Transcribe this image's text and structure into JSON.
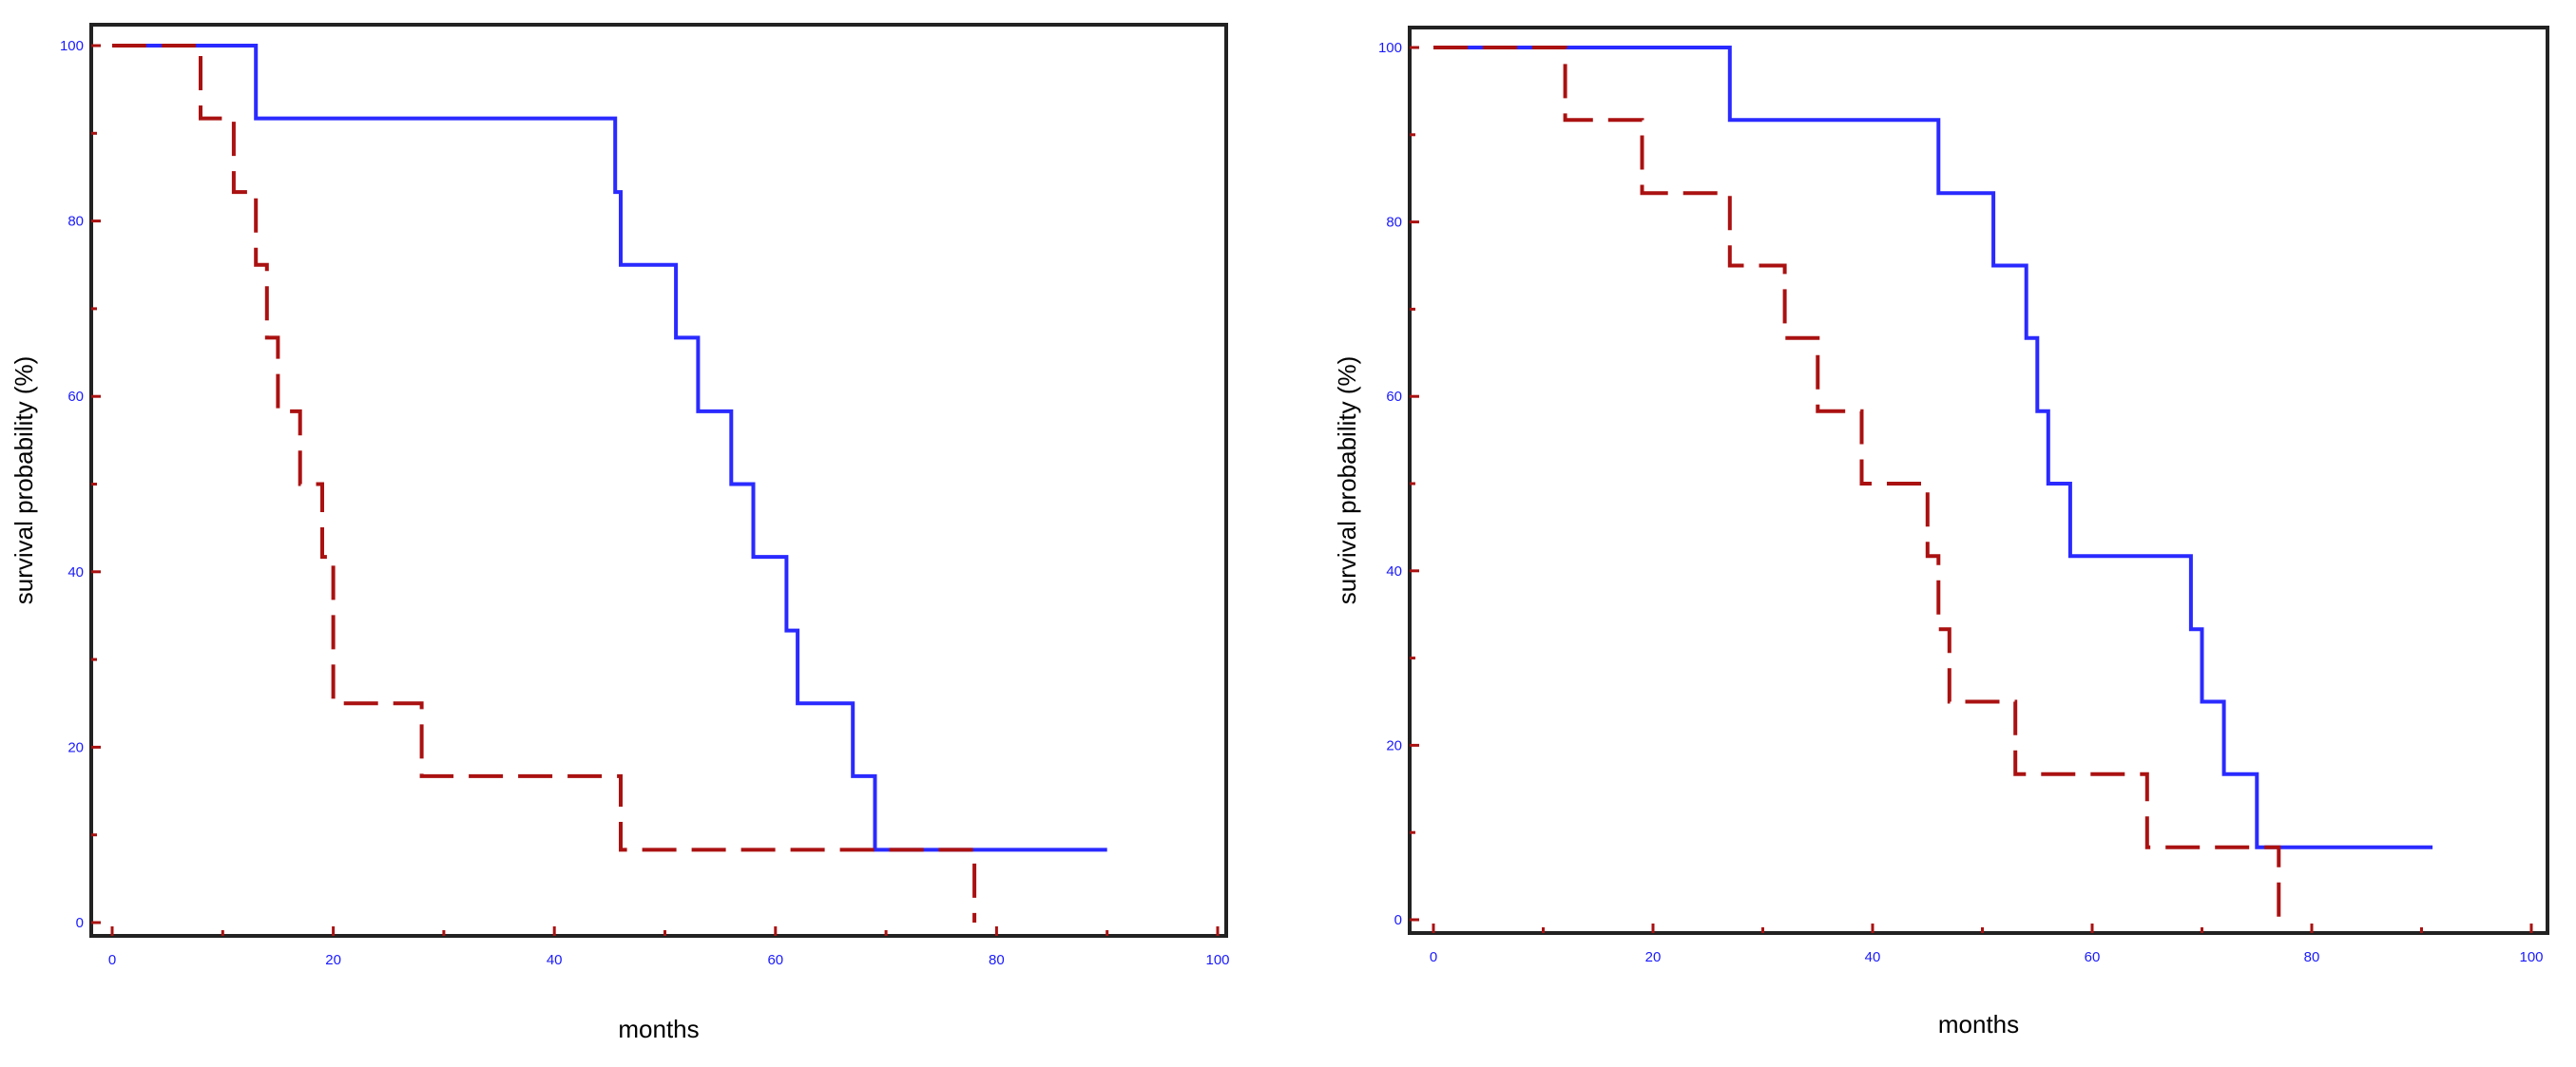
{
  "chart_data": [
    {
      "type": "line",
      "step": true,
      "title": "",
      "xlabel": "months",
      "ylabel": "survival probability (%)",
      "xlim": [
        0,
        100
      ],
      "ylim": [
        0,
        100
      ],
      "x_ticks": [
        "0",
        "20",
        "40",
        "60",
        "80",
        "100"
      ],
      "y_ticks": [
        "0",
        "20",
        "40",
        "60",
        "80",
        "100"
      ],
      "grid": false,
      "series": [
        {
          "color": "#2a2aff",
          "style": "solid",
          "points": [
            [
              0,
              100
            ],
            [
              13,
              100
            ],
            [
              13,
              91.7
            ],
            [
              45.5,
              91.7
            ],
            [
              45.5,
              83.3
            ],
            [
              46,
              83.3
            ],
            [
              46,
              75
            ],
            [
              51,
              75
            ],
            [
              51,
              66.7
            ],
            [
              53,
              66.7
            ],
            [
              53,
              58.3
            ],
            [
              56,
              58.3
            ],
            [
              56,
              50
            ],
            [
              58,
              50
            ],
            [
              58,
              41.7
            ],
            [
              61,
              41.7
            ],
            [
              61,
              33.3
            ],
            [
              62,
              33.3
            ],
            [
              62,
              25
            ],
            [
              67,
              25
            ],
            [
              67,
              16.7
            ],
            [
              69,
              16.7
            ],
            [
              69,
              8.3
            ],
            [
              90,
              8.3
            ]
          ]
        },
        {
          "color": "#aa1111",
          "style": "dashed",
          "points": [
            [
              0,
              100
            ],
            [
              8,
              100
            ],
            [
              8,
              91.7
            ],
            [
              11,
              91.7
            ],
            [
              11,
              83.3
            ],
            [
              13,
              83.3
            ],
            [
              13,
              75
            ],
            [
              14,
              75
            ],
            [
              14,
              66.7
            ],
            [
              15,
              66.7
            ],
            [
              15,
              58.3
            ],
            [
              17,
              58.3
            ],
            [
              17,
              50
            ],
            [
              19,
              50
            ],
            [
              19,
              41.7
            ],
            [
              20,
              41.7
            ],
            [
              20,
              25
            ],
            [
              28,
              25
            ],
            [
              28,
              16.7
            ],
            [
              46,
              16.7
            ],
            [
              46,
              8.3
            ],
            [
              78,
              8.3
            ],
            [
              78,
              0
            ]
          ]
        }
      ]
    },
    {
      "type": "line",
      "step": true,
      "title": "",
      "xlabel": "months",
      "ylabel": "survival probability (%)",
      "xlim": [
        0,
        100
      ],
      "ylim": [
        0,
        100
      ],
      "x_ticks": [
        "0",
        "20",
        "40",
        "60",
        "80",
        "100"
      ],
      "y_ticks": [
        "0",
        "20",
        "40",
        "60",
        "80",
        "100"
      ],
      "grid": false,
      "series": [
        {
          "color": "#2a2aff",
          "style": "solid",
          "points": [
            [
              0,
              100
            ],
            [
              27,
              100
            ],
            [
              27,
              91.7
            ],
            [
              46,
              91.7
            ],
            [
              46,
              83.3
            ],
            [
              51,
              83.3
            ],
            [
              51,
              75
            ],
            [
              54,
              75
            ],
            [
              54,
              66.7
            ],
            [
              55,
              66.7
            ],
            [
              55,
              58.3
            ],
            [
              56,
              58.3
            ],
            [
              56,
              50
            ],
            [
              58,
              50
            ],
            [
              58,
              41.7
            ],
            [
              69,
              41.7
            ],
            [
              69,
              33.3
            ],
            [
              70,
              33.3
            ],
            [
              70,
              25
            ],
            [
              72,
              25
            ],
            [
              72,
              16.7
            ],
            [
              75,
              16.7
            ],
            [
              75,
              8.3
            ],
            [
              91,
              8.3
            ]
          ]
        },
        {
          "color": "#aa1111",
          "style": "dashed",
          "points": [
            [
              0,
              100
            ],
            [
              12,
              100
            ],
            [
              12,
              91.7
            ],
            [
              19,
              91.7
            ],
            [
              19,
              83.3
            ],
            [
              27,
              83.3
            ],
            [
              27,
              75
            ],
            [
              32,
              75
            ],
            [
              32,
              66.7
            ],
            [
              35,
              66.7
            ],
            [
              35,
              58.3
            ],
            [
              39,
              58.3
            ],
            [
              39,
              50
            ],
            [
              45,
              50
            ],
            [
              45,
              41.7
            ],
            [
              46,
              41.7
            ],
            [
              46,
              33.3
            ],
            [
              47,
              33.3
            ],
            [
              47,
              25
            ],
            [
              53,
              25
            ],
            [
              53,
              16.7
            ],
            [
              65,
              16.7
            ],
            [
              65,
              8.3
            ],
            [
              77,
              8.3
            ],
            [
              77,
              0
            ]
          ]
        }
      ]
    }
  ]
}
